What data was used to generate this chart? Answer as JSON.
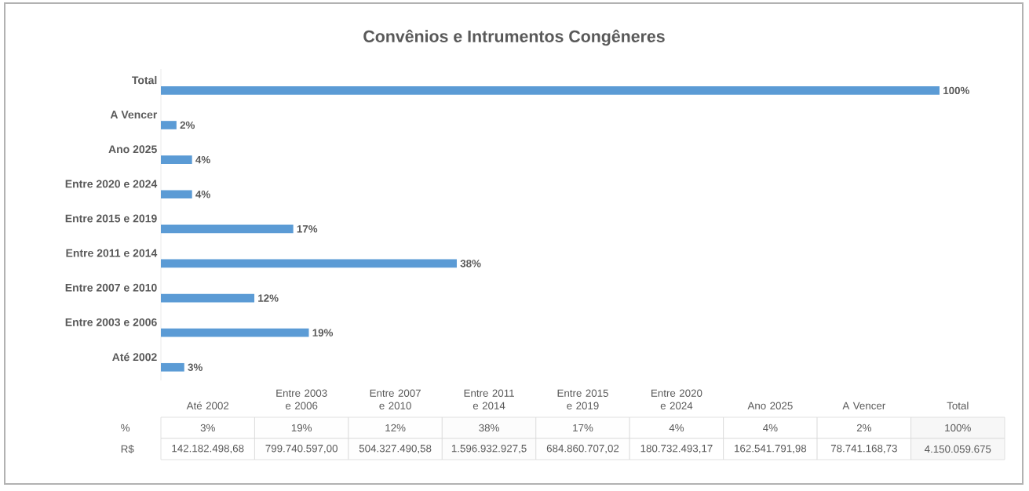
{
  "chart_data": [
    {
      "type": "bar",
      "orientation": "horizontal",
      "title": "Convênios e Intrumentos Congêneres",
      "categories": [
        "Total",
        "A Vencer",
        "Ano 2025",
        "Entre 2020 e 2024",
        "Entre 2015 e 2019",
        "Entre 2011 e 2014",
        "Entre 2007 e 2010",
        "Entre 2003 e 2006",
        "Até 2002"
      ],
      "values": [
        100,
        2,
        4,
        4,
        17,
        38,
        12,
        19,
        3
      ],
      "value_labels": [
        "100%",
        "2%",
        "4%",
        "4%",
        "17%",
        "38%",
        "12%",
        "19%",
        "3%"
      ],
      "color": "#5b9bd5"
    },
    {
      "type": "heatmap",
      "categories": [
        "Até 2002",
        "Entre 2003 e 2006",
        "Entre 2007 e 2010",
        "Entre 2011 e 2014",
        "Entre 2015 e 2019",
        "Entre 2020 e 2024",
        "Ano 2025",
        "A Vencer",
        "Total"
      ],
      "y_categories": [
        "%",
        "R$"
      ],
      "cells": [
        [
          3,
          19,
          12,
          38,
          17,
          4,
          4,
          2,
          100
        ],
        [
          142182498.68,
          799740597.0,
          504327490.58,
          1596932927.5,
          684860707.02,
          180732493.17,
          162541791.98,
          78741168.73,
          4150059675
        ]
      ],
      "cell_labels": [
        [
          "3%",
          "19%",
          "12%",
          "38%",
          "17%",
          "4%",
          "4%",
          "2%",
          "100%"
        ],
        [
          "142.182.498,68",
          "799.740.597,00",
          "504.327.490,58",
          "1.596.932.927,5",
          "684.860.707,02",
          "180.732.493,17",
          "162.541.791,98",
          "78.741.168,73",
          "4.150.059.675"
        ]
      ]
    }
  ]
}
